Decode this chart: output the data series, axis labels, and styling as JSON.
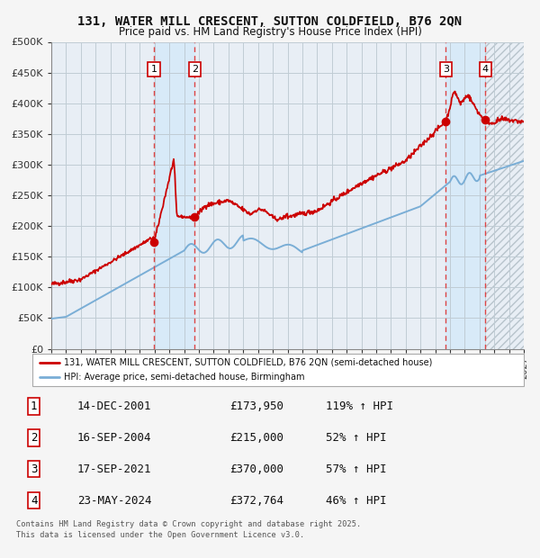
{
  "title": "131, WATER MILL CRESCENT, SUTTON COLDFIELD, B76 2QN",
  "subtitle": "Price paid vs. HM Land Registry's House Price Index (HPI)",
  "legend_line1": "131, WATER MILL CRESCENT, SUTTON COLDFIELD, B76 2QN (semi-detached house)",
  "legend_line2": "HPI: Average price, semi-detached house, Birmingham",
  "footer_line1": "Contains HM Land Registry data © Crown copyright and database right 2025.",
  "footer_line2": "This data is licensed under the Open Government Licence v3.0.",
  "xmin": 1995,
  "xmax": 2027,
  "ymin": 0,
  "ymax": 500000,
  "yticks": [
    0,
    50000,
    100000,
    150000,
    200000,
    250000,
    300000,
    350000,
    400000,
    450000,
    500000
  ],
  "ytick_labels": [
    "£0",
    "£50K",
    "£100K",
    "£150K",
    "£200K",
    "£250K",
    "£300K",
    "£350K",
    "£400K",
    "£450K",
    "£500K"
  ],
  "red_color": "#cc0000",
  "blue_color": "#7aade0",
  "bg_color": "#f0f4f8",
  "plot_bg_color": "#e8eef4",
  "grid_color": "#c8d0d8",
  "sale_color_bg": "#daeaf8",
  "hatch_color": "#b0b8c0",
  "transactions": [
    {
      "num": 1,
      "date": "14-DEC-2001",
      "year": 2001.95,
      "price": 173950,
      "pct": "119%",
      "dir": "↑"
    },
    {
      "num": 2,
      "date": "16-SEP-2004",
      "year": 2004.71,
      "price": 215000,
      "pct": "52%",
      "dir": "↑"
    },
    {
      "num": 3,
      "date": "17-SEP-2021",
      "year": 2021.71,
      "price": 370000,
      "pct": "57%",
      "dir": "↑"
    },
    {
      "num": 4,
      "date": "23-MAY-2024",
      "year": 2024.4,
      "price": 372764,
      "pct": "46%",
      "dir": "↑"
    }
  ],
  "table_rows": [
    {
      "num": "1",
      "date": "14-DEC-2001",
      "price": "£173,950",
      "pct": "119% ↑ HPI"
    },
    {
      "num": "2",
      "date": "16-SEP-2004",
      "price": "£215,000",
      "pct": "52% ↑ HPI"
    },
    {
      "num": "3",
      "date": "17-SEP-2021",
      "price": "£370,000",
      "pct": "57% ↑ HPI"
    },
    {
      "num": "4",
      "date": "23-MAY-2024",
      "price": "£372,764",
      "pct": "46% ↑ HPI"
    }
  ]
}
